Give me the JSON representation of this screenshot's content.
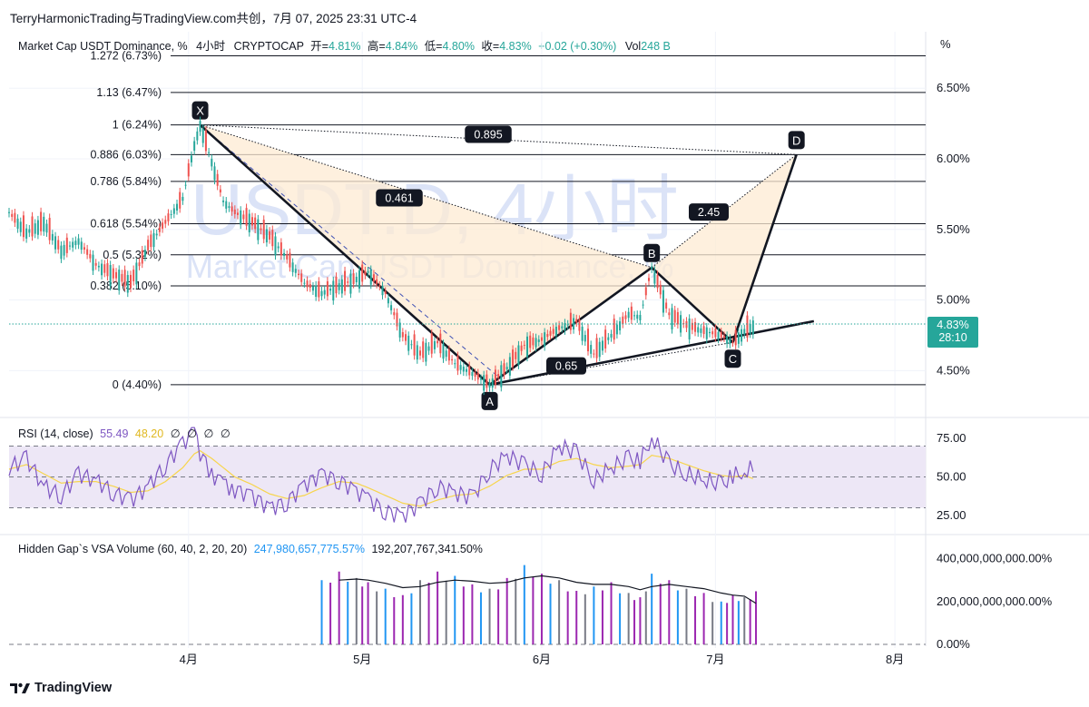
{
  "header": {
    "attribution": "TerryHarmonicTrading与TradingView.com共创，7月 07, 2025 23:31 UTC-4",
    "symbol_title": "Market Cap USDT Dominance, %",
    "timeframe": "4小时",
    "exchange": "CRYPTOCAP",
    "ohlc": [
      {
        "label": "开=",
        "value": "4.81%"
      },
      {
        "label": "高=",
        "value": "4.84%"
      },
      {
        "label": "低=",
        "value": "4.80%"
      },
      {
        "label": "收=",
        "value": "4.83%"
      }
    ],
    "change": "+0.02 (+0.30%)",
    "vol_label": "Vol",
    "vol_value": "248 B",
    "unit_label": "%"
  },
  "watermark": {
    "line1": "USDT.D, 4小时",
    "line2": "Market Cap USDT Dominance, %"
  },
  "price_badge": {
    "price": "4.83%",
    "countdown": "28:10"
  },
  "colors": {
    "up": "#26a69a",
    "down": "#ef5350",
    "pattern_fill": "#fdebd3",
    "rsi": "#7e57c2",
    "rsi_ma": "#f7d54c",
    "rsi_band": "#ede7f6",
    "vol_blue": "#2196f3",
    "vol_purple": "#9c27b0",
    "vol_gray": "#787b86"
  },
  "chart_data": [
    {
      "type": "line",
      "name_hint": "price",
      "ylim": [
        4.2,
        6.9
      ],
      "y_ticks": [
        "6.50%",
        "6.00%",
        "5.50%",
        "5.00%",
        "4.50%"
      ],
      "y_tick_values": [
        6.5,
        6.0,
        5.5,
        5.0,
        4.5
      ],
      "x_ticks": [
        "4月",
        "5月",
        "6月",
        "7月",
        "8月"
      ],
      "x_tick_dates": [
        "2025-04-01",
        "2025-05-01",
        "2025-06-01",
        "2025-07-01",
        "2025-08-01"
      ],
      "fib_levels": [
        {
          "label": "1.272 (6.73%)",
          "value": 6.73
        },
        {
          "label": "1.13 (6.47%)",
          "value": 6.47
        },
        {
          "label": "1 (6.24%)",
          "value": 6.24
        },
        {
          "label": "0.886 (6.03%)",
          "value": 6.03
        },
        {
          "label": "0.786 (5.84%)",
          "value": 5.84
        },
        {
          "label": "0.618 (5.54%)",
          "value": 5.54
        },
        {
          "label": "0.5 (5.32%)",
          "value": 5.32
        },
        {
          "label": "0.382 (5.10%)",
          "value": 5.1
        },
        {
          "label": "0 (4.40%)",
          "value": 4.4
        }
      ],
      "pattern_points": [
        {
          "label": "X",
          "date": "2025-04-03",
          "value": 6.24
        },
        {
          "label": "A",
          "date": "2025-05-23",
          "value": 4.4
        },
        {
          "label": "B",
          "date": "2025-06-20",
          "value": 5.23
        },
        {
          "label": "C",
          "date": "2025-07-04",
          "value": 4.7
        },
        {
          "label": "D",
          "date": "2025-07-15",
          "value": 6.03
        }
      ],
      "ratios": [
        {
          "label": "0.895",
          "between": [
            "X",
            "D"
          ]
        },
        {
          "label": "0.461",
          "between": [
            "X",
            "B"
          ]
        },
        {
          "label": "2.45",
          "between": [
            "B",
            "D"
          ]
        },
        {
          "label": "0.65",
          "between": [
            "A",
            "C"
          ]
        }
      ],
      "trendline": {
        "from_date": "2025-05-23",
        "from_value": 4.4,
        "to_date": "2025-07-18",
        "to_value": 4.85
      },
      "last_price": 4.83,
      "series": [
        {
          "values": [
            [
              "2025-03-01",
              5.62
            ],
            [
              "2025-03-04",
              5.48
            ],
            [
              "2025-03-07",
              5.55
            ],
            [
              "2025-03-10",
              5.35
            ],
            [
              "2025-03-13",
              5.42
            ],
            [
              "2025-03-16",
              5.25
            ],
            [
              "2025-03-19",
              5.18
            ],
            [
              "2025-03-22",
              5.12
            ],
            [
              "2025-03-25",
              5.38
            ],
            [
              "2025-03-28",
              5.55
            ],
            [
              "2025-03-31",
              5.72
            ],
            [
              "2025-04-02",
              6.1
            ],
            [
              "2025-04-03",
              6.24
            ],
            [
              "2025-04-05",
              5.98
            ],
            [
              "2025-04-07",
              5.7
            ],
            [
              "2025-04-09",
              5.62
            ],
            [
              "2025-04-12",
              5.55
            ],
            [
              "2025-04-15",
              5.45
            ],
            [
              "2025-04-18",
              5.3
            ],
            [
              "2025-04-21",
              5.12
            ],
            [
              "2025-04-24",
              5.05
            ],
            [
              "2025-04-27",
              5.1
            ],
            [
              "2025-04-30",
              5.15
            ],
            [
              "2025-05-02",
              5.2
            ],
            [
              "2025-05-05",
              5.05
            ],
            [
              "2025-05-08",
              4.75
            ],
            [
              "2025-05-11",
              4.62
            ],
            [
              "2025-05-14",
              4.7
            ],
            [
              "2025-05-17",
              4.55
            ],
            [
              "2025-05-20",
              4.48
            ],
            [
              "2025-05-23",
              4.4
            ],
            [
              "2025-05-26",
              4.52
            ],
            [
              "2025-05-29",
              4.68
            ],
            [
              "2025-06-01",
              4.72
            ],
            [
              "2025-06-04",
              4.8
            ],
            [
              "2025-06-07",
              4.85
            ],
            [
              "2025-06-10",
              4.62
            ],
            [
              "2025-06-13",
              4.75
            ],
            [
              "2025-06-16",
              4.9
            ],
            [
              "2025-06-18",
              4.88
            ],
            [
              "2025-06-20",
              5.23
            ],
            [
              "2025-06-23",
              4.9
            ],
            [
              "2025-06-26",
              4.82
            ],
            [
              "2025-06-29",
              4.78
            ],
            [
              "2025-07-02",
              4.75
            ],
            [
              "2025-07-04",
              4.7
            ],
            [
              "2025-07-06",
              4.78
            ],
            [
              "2025-07-08",
              4.83
            ]
          ]
        }
      ]
    },
    {
      "type": "line",
      "name_hint": "rsi",
      "title": "RSI (14, close)",
      "legend_values": [
        "55.49",
        "48.20",
        "∅",
        "∅",
        "∅",
        "∅"
      ],
      "ylim": [
        15,
        85
      ],
      "y_ticks": [
        "75.00",
        "50.00",
        "25.00"
      ],
      "y_tick_values": [
        75,
        50,
        25
      ],
      "band": [
        30,
        70
      ],
      "series": [
        {
          "name": "RSI",
          "values": [
            56,
            62,
            44,
            38,
            52,
            48,
            40,
            35,
            44,
            58,
            72,
            80,
            66,
            52,
            46,
            42,
            38,
            30,
            34,
            45,
            52,
            48,
            41,
            36,
            28,
            25,
            33,
            44,
            40,
            37,
            55,
            64,
            58,
            52,
            70,
            66,
            48,
            56,
            62,
            60,
            76,
            58,
            52,
            48,
            45,
            50,
            54,
            55.49
          ]
        },
        {
          "name": "MA",
          "values": [
            55,
            58,
            52,
            46,
            47,
            47,
            44,
            40,
            41,
            47,
            56,
            65,
            67,
            62,
            56,
            50,
            45,
            39,
            36,
            38,
            43,
            47,
            46,
            43,
            38,
            33,
            31,
            35,
            38,
            39,
            44,
            51,
            55,
            55,
            60,
            62,
            58,
            56,
            57,
            58,
            64,
            62,
            58,
            54,
            51,
            50,
            51,
            48.2
          ]
        }
      ]
    },
    {
      "type": "bar",
      "name_hint": "volume",
      "title": "Hidden Gap`s VSA Volume (60, 40, 2, 20, 20)",
      "legend_values": [
        "247,980,657,775.57%",
        "192,207,767,341.50%"
      ],
      "ylim": [
        0,
        500000000000
      ],
      "y_ticks": [
        "400,000,000,000.00%",
        "200,000,000,000.00%",
        "0.00%"
      ],
      "y_tick_values": [
        400000000000,
        200000000000,
        0
      ],
      "series": [
        {
          "name": "volume",
          "values": [
            210,
            150,
            240,
            290,
            360,
            420,
            390,
            450,
            380,
            340,
            300,
            420,
            460,
            480,
            400,
            320,
            350,
            300,
            270,
            260,
            300,
            340,
            310,
            290,
            260,
            230,
            300,
            340,
            320,
            280,
            260,
            310,
            370,
            330,
            300,
            250,
            270,
            290,
            240,
            220,
            330,
            300,
            260,
            240,
            200,
            230,
            220,
            248
          ]
        },
        {
          "name": "average",
          "values": [
            190,
            195,
            210,
            230,
            270,
            320,
            360,
            390,
            395,
            380,
            360,
            370,
            390,
            410,
            400,
            370,
            350,
            330,
            300,
            285,
            290,
            300,
            305,
            300,
            285,
            265,
            270,
            290,
            300,
            295,
            285,
            290,
            310,
            320,
            310,
            290,
            280,
            280,
            270,
            255,
            270,
            280,
            270,
            260,
            240,
            230,
            225,
            192
          ]
        }
      ]
    }
  ],
  "footer": {
    "brand": "TradingView"
  }
}
